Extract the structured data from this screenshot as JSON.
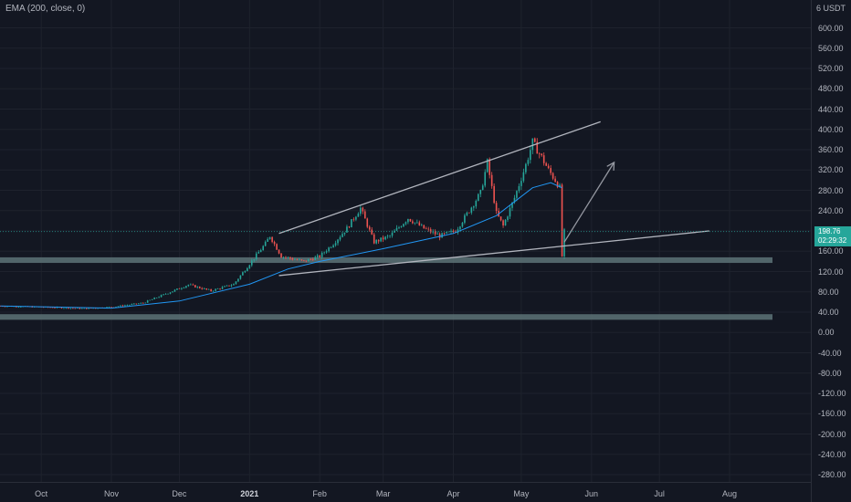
{
  "legend": {
    "indicator": "EMA (200, close, 0)"
  },
  "currency": "6 USDT",
  "last_price": {
    "value": "198.76",
    "countdown": "02:29:32"
  },
  "colors": {
    "background": "#131722",
    "grid": "#1e222d",
    "up": "#26a69a",
    "down": "#ef5350",
    "ema": "#2196f3",
    "trendline": "#b2b5be",
    "zone": "#5d7377",
    "arrow": "#9598a1"
  },
  "chart_data": {
    "type": "candlestick",
    "title": "",
    "y_axis": {
      "ylim": [
        -300,
        620
      ],
      "ticks": [
        "600.00",
        "560.00",
        "520.00",
        "480.00",
        "440.00",
        "400.00",
        "360.00",
        "320.00",
        "280.00",
        "240.00",
        "200.00",
        "160.00",
        "120.00",
        "80.00",
        "40.00",
        "0.00",
        "-40.00",
        "-80.00",
        "-120.00",
        "-160.00",
        "-200.00",
        "-240.00",
        "-280.00"
      ]
    },
    "x_axis": {
      "range": [
        "2020-09-13",
        "2021-08-28"
      ],
      "ticks": [
        {
          "label": "Oct",
          "date": "2020-10-01",
          "bold": false
        },
        {
          "label": "Nov",
          "date": "2020-11-01",
          "bold": false
        },
        {
          "label": "Dec",
          "date": "2020-12-01",
          "bold": false
        },
        {
          "label": "2021",
          "date": "2021-01-01",
          "bold": true
        },
        {
          "label": "Feb",
          "date": "2021-02-01",
          "bold": false
        },
        {
          "label": "Mar",
          "date": "2021-03-01",
          "bold": false
        },
        {
          "label": "Apr",
          "date": "2021-04-01",
          "bold": false
        },
        {
          "label": "May",
          "date": "2021-05-01",
          "bold": false
        },
        {
          "label": "Jun",
          "date": "2021-06-01",
          "bold": false
        },
        {
          "label": "Jul",
          "date": "2021-07-01",
          "bold": false
        },
        {
          "label": "Aug",
          "date": "2021-08-01",
          "bold": false
        }
      ]
    },
    "price_path": [
      [
        "2020-09-13",
        52
      ],
      [
        "2020-10-01",
        50
      ],
      [
        "2020-10-20",
        47
      ],
      [
        "2020-11-01",
        50
      ],
      [
        "2020-11-15",
        58
      ],
      [
        "2020-11-25",
        76
      ],
      [
        "2020-12-05",
        94
      ],
      [
        "2020-12-15",
        82
      ],
      [
        "2020-12-25",
        95
      ],
      [
        "2021-01-01",
        135
      ],
      [
        "2021-01-08",
        175
      ],
      [
        "2021-01-10",
        190
      ],
      [
        "2021-01-15",
        150
      ],
      [
        "2021-01-25",
        140
      ],
      [
        "2021-02-01",
        150
      ],
      [
        "2021-02-07",
        175
      ],
      [
        "2021-02-13",
        205
      ],
      [
        "2021-02-19",
        245
      ],
      [
        "2021-02-25",
        178
      ],
      [
        "2021-03-04",
        190
      ],
      [
        "2021-03-12",
        225
      ],
      [
        "2021-03-19",
        205
      ],
      [
        "2021-03-26",
        190
      ],
      [
        "2021-04-02",
        200
      ],
      [
        "2021-04-08",
        240
      ],
      [
        "2021-04-13",
        275
      ],
      [
        "2021-04-16",
        335
      ],
      [
        "2021-04-20",
        235
      ],
      [
        "2021-04-23",
        210
      ],
      [
        "2021-04-28",
        265
      ],
      [
        "2021-05-03",
        330
      ],
      [
        "2021-05-06",
        375
      ],
      [
        "2021-05-10",
        345
      ],
      [
        "2021-05-13",
        320
      ],
      [
        "2021-05-16",
        300
      ],
      [
        "2021-05-18",
        285
      ],
      [
        "2021-05-19",
        150
      ],
      [
        "2021-05-20",
        198.76
      ]
    ],
    "ema_path": [
      [
        "2020-09-13",
        52
      ],
      [
        "2020-11-01",
        48
      ],
      [
        "2020-12-01",
        62
      ],
      [
        "2021-01-01",
        95
      ],
      [
        "2021-01-18",
        125
      ],
      [
        "2021-02-01",
        140
      ],
      [
        "2021-03-01",
        165
      ],
      [
        "2021-04-01",
        195
      ],
      [
        "2021-04-20",
        230
      ],
      [
        "2021-05-06",
        285
      ],
      [
        "2021-05-14",
        295
      ],
      [
        "2021-05-19",
        285
      ]
    ],
    "horizontal_zones": [
      {
        "y_from": 137,
        "y_to": 148
      },
      {
        "y_from": 25,
        "y_to": 36
      }
    ],
    "trendlines": [
      {
        "from": [
          "2021-01-14",
          195
        ],
        "to": [
          "2021-06-05",
          415
        ]
      },
      {
        "from": [
          "2021-01-14",
          112
        ],
        "to": [
          "2021-07-23",
          200
        ]
      }
    ],
    "arrow": {
      "from": [
        "2021-05-20",
        178
      ],
      "to": [
        "2021-06-11",
        335
      ]
    }
  }
}
